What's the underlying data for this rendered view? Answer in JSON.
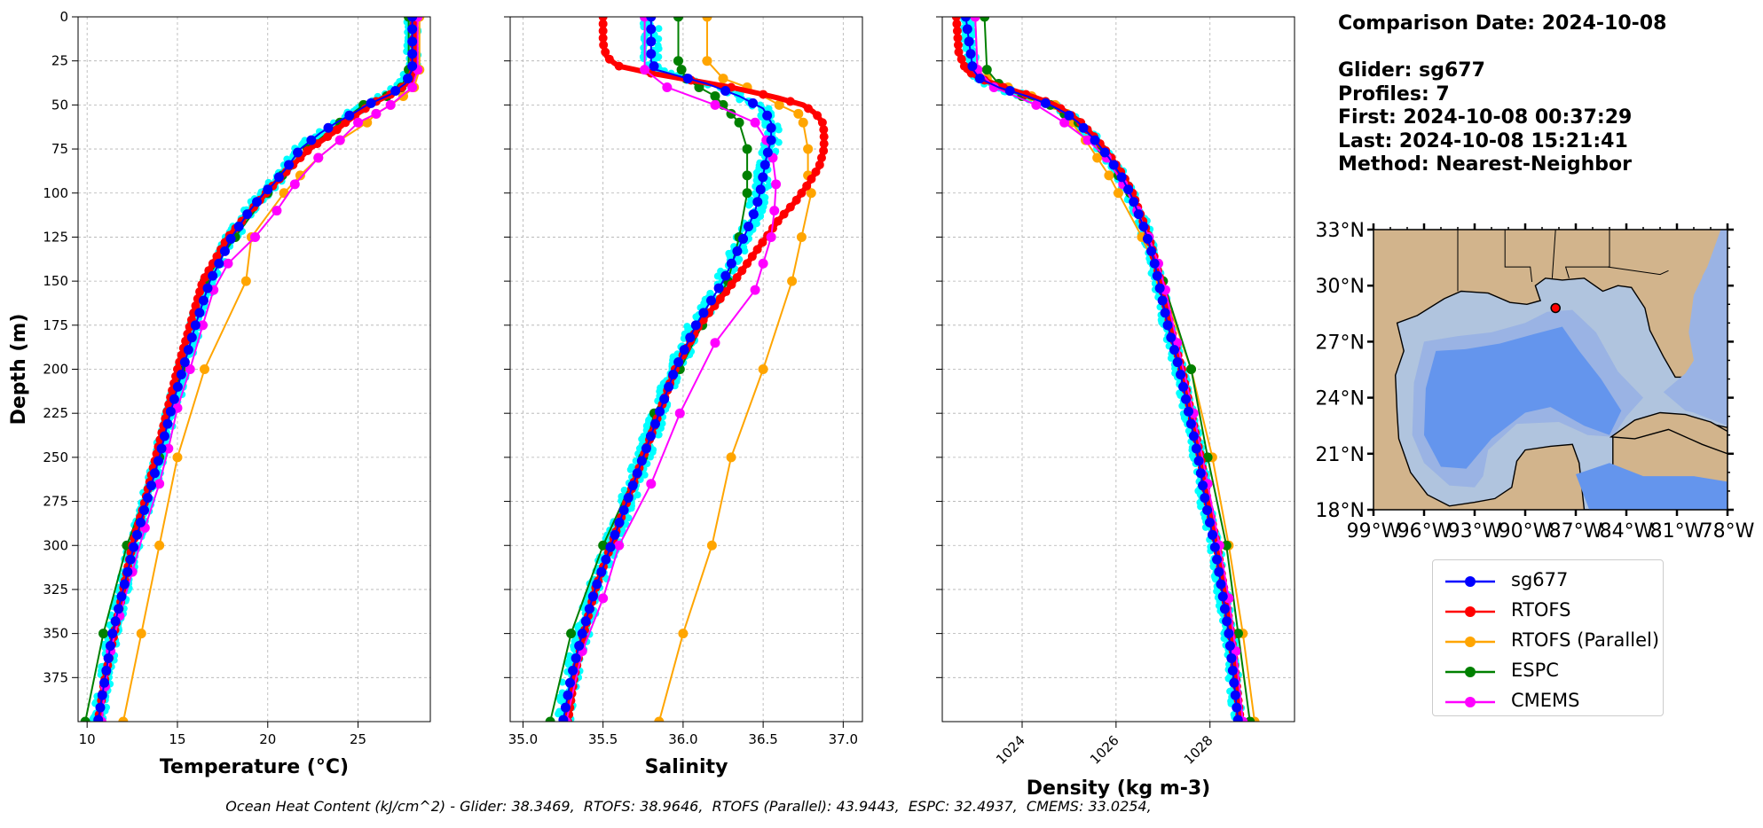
{
  "info": {
    "comparison_date": "Comparison Date: 2024-10-08",
    "glider": "Glider: sg677",
    "profiles": "Profiles: 7",
    "first": "First: 2024-10-08 00:37:29",
    "last": "Last: 2024-10-08 15:21:41",
    "method": "Method: Nearest-Neighbor"
  },
  "footer": "Ocean Heat Content (kJ/cm^2) - Glider: 38.3469,  RTOFS: 38.9646,  RTOFS (Parallel): 43.9443,  ESPC: 32.4937,  CMEMS: 33.0254,",
  "colors": {
    "sg677": "#0000ff",
    "RTOFS": "#ff0000",
    "RTOFS (Parallel)": "#ffa500",
    "ESPC": "#008000",
    "CMEMS": "#ff00ff",
    "glider_raw": "#00ffff",
    "grid": "#b0b0b0"
  },
  "legend": [
    {
      "label": "sg677",
      "color": "#0000ff"
    },
    {
      "label": "RTOFS",
      "color": "#ff0000"
    },
    {
      "label": "RTOFS (Parallel)",
      "color": "#ffa500"
    },
    {
      "label": "ESPC",
      "color": "#008000"
    },
    {
      "label": "CMEMS",
      "color": "#ff00ff"
    }
  ],
  "map": {
    "lat_ticks": [
      "33°N",
      "30°N",
      "27°N",
      "24°N",
      "21°N",
      "18°N"
    ],
    "lon_ticks": [
      "99°W",
      "96°W",
      "93°W",
      "90°W",
      "87°W",
      "84°W",
      "81°W",
      "78°W"
    ],
    "extent": {
      "lon": [
        -99,
        -78
      ],
      "lat": [
        18,
        33
      ]
    },
    "glider_position": {
      "lon": -88.2,
      "lat": 28.8
    },
    "land_color": "#d2b48c",
    "shelf_color": "#b0c4de",
    "mid_color": "#9ab3e4",
    "deep_color": "#6495ed"
  },
  "chart_data": [
    {
      "type": "line",
      "xlabel": "Temperature (°C)",
      "ylabel": "Depth (m)",
      "xlim": [
        9.5,
        29
      ],
      "ylim": [
        400,
        0
      ],
      "xticks": [
        10,
        15,
        20,
        25
      ],
      "yticks": [
        0,
        25,
        50,
        75,
        100,
        125,
        150,
        175,
        200,
        225,
        250,
        275,
        300,
        325,
        350,
        375
      ],
      "grid": true,
      "series": [
        {
          "name": "sg677",
          "depth": [
            0,
            30,
            38,
            44,
            50,
            55,
            60,
            66,
            75,
            85,
            95,
            100,
            110,
            125,
            140,
            150,
            175,
            200,
            225,
            250,
            275,
            300,
            325,
            350,
            375,
            400
          ],
          "values": [
            28.0,
            28.0,
            27.6,
            26.8,
            25.5,
            24.7,
            23.8,
            22.9,
            21.8,
            21.1,
            20.3,
            19.8,
            19.0,
            18.0,
            17.3,
            16.8,
            16.0,
            15.3,
            14.6,
            14.0,
            13.3,
            12.6,
            12.0,
            11.4,
            11.0,
            10.6
          ]
        },
        {
          "name": "RTOFS",
          "depth": [
            0,
            30,
            36,
            42,
            48,
            54,
            60,
            66,
            75,
            85,
            100,
            125,
            150,
            175,
            200,
            225,
            250,
            275,
            300,
            325,
            350,
            375,
            400
          ],
          "values": [
            28.1,
            28.1,
            27.9,
            27.2,
            26.0,
            25.1,
            24.3,
            23.6,
            22.3,
            21.3,
            19.9,
            17.8,
            16.4,
            15.7,
            15.0,
            14.4,
            13.8,
            13.2,
            12.5,
            12.0,
            11.5,
            11.0,
            10.6
          ]
        },
        {
          "name": "RTOFS (Parallel)",
          "depth": [
            0,
            30,
            40,
            45,
            50,
            55,
            60,
            70,
            80,
            90,
            100,
            125,
            150,
            200,
            250,
            300,
            350,
            400
          ],
          "values": [
            28.4,
            28.4,
            28.1,
            27.5,
            26.8,
            26.0,
            25.5,
            24.0,
            22.8,
            21.8,
            20.9,
            19.1,
            18.8,
            16.5,
            15.0,
            14.0,
            13.0,
            12.0
          ]
        },
        {
          "name": "ESPC",
          "depth": [
            0,
            30,
            40,
            45,
            50,
            60,
            75,
            90,
            100,
            125,
            150,
            175,
            200,
            250,
            300,
            350,
            400
          ],
          "values": [
            27.8,
            27.8,
            27.4,
            26.6,
            25.3,
            24.0,
            22.2,
            20.8,
            20.0,
            18.2,
            16.5,
            15.8,
            15.2,
            14.0,
            12.2,
            10.9,
            9.9
          ]
        },
        {
          "name": "CMEMS",
          "depth": [
            0,
            30,
            40,
            50,
            55,
            60,
            70,
            80,
            95,
            110,
            125,
            140,
            155,
            175,
            200,
            222,
            245,
            265,
            290,
            315,
            340,
            360,
            380,
            400
          ],
          "values": [
            28.3,
            28.3,
            28.0,
            26.8,
            26.0,
            25.0,
            24.0,
            22.8,
            21.5,
            20.5,
            19.3,
            17.8,
            17.0,
            16.4,
            15.7,
            15.0,
            14.5,
            14.0,
            13.2,
            12.5,
            11.8,
            11.3,
            11.0,
            10.8
          ]
        }
      ]
    },
    {
      "type": "line",
      "xlabel": "Salinity",
      "xlim": [
        34.92,
        37.12
      ],
      "ylim": [
        400,
        0
      ],
      "xticks": [
        35.0,
        35.5,
        36.0,
        36.5,
        37.0
      ],
      "grid": true,
      "series": [
        {
          "name": "sg677",
          "depth": [
            0,
            15,
            25,
            30,
            33,
            38,
            45,
            52,
            60,
            70,
            80,
            90,
            100,
            110,
            125,
            150,
            175,
            200,
            225,
            250,
            275,
            300,
            325,
            350,
            375,
            400
          ],
          "values": [
            35.8,
            35.8,
            35.8,
            35.83,
            35.95,
            36.15,
            36.35,
            36.5,
            36.55,
            36.55,
            36.52,
            36.5,
            36.48,
            36.45,
            36.38,
            36.25,
            36.08,
            35.95,
            35.85,
            35.75,
            35.65,
            35.55,
            35.45,
            35.37,
            35.3,
            35.25
          ]
        },
        {
          "name": "RTOFS",
          "depth": [
            0,
            15,
            22,
            25,
            28,
            32,
            36,
            40,
            45,
            50,
            55,
            60,
            65,
            75,
            85,
            95,
            105,
            115,
            125,
            140,
            150,
            175,
            200,
            225,
            250,
            275,
            300,
            325,
            350,
            375,
            400
          ],
          "values": [
            35.5,
            35.5,
            35.52,
            35.55,
            35.6,
            35.8,
            36.05,
            36.3,
            36.55,
            36.75,
            36.83,
            36.87,
            36.88,
            36.88,
            36.85,
            36.78,
            36.7,
            36.6,
            36.52,
            36.4,
            36.32,
            36.1,
            35.95,
            35.85,
            35.75,
            35.65,
            35.55,
            35.45,
            35.38,
            35.32,
            35.28
          ]
        },
        {
          "name": "RTOFS (Parallel)",
          "depth": [
            0,
            25,
            35,
            40,
            50,
            55,
            60,
            75,
            90,
            100,
            125,
            150,
            200,
            250,
            300,
            350,
            400
          ],
          "values": [
            36.15,
            36.15,
            36.25,
            36.4,
            36.6,
            36.72,
            36.75,
            36.78,
            36.78,
            36.8,
            36.74,
            36.68,
            36.5,
            36.3,
            36.18,
            36.0,
            35.85
          ]
        },
        {
          "name": "ESPC",
          "depth": [
            0,
            25,
            30,
            35,
            40,
            45,
            50,
            55,
            60,
            75,
            90,
            100,
            125,
            150,
            175,
            200,
            225,
            250,
            300,
            350,
            400
          ],
          "values": [
            35.97,
            35.97,
            35.99,
            36.02,
            36.1,
            36.2,
            36.25,
            36.3,
            36.35,
            36.4,
            36.4,
            36.4,
            36.35,
            36.28,
            36.12,
            35.98,
            35.82,
            35.75,
            35.5,
            35.3,
            35.17
          ]
        },
        {
          "name": "CMEMS",
          "depth": [
            0,
            30,
            40,
            50,
            60,
            70,
            80,
            95,
            110,
            125,
            140,
            155,
            185,
            225,
            265,
            300,
            330,
            360,
            400
          ],
          "values": [
            35.76,
            35.76,
            35.9,
            36.2,
            36.45,
            36.52,
            36.56,
            36.58,
            36.57,
            36.55,
            36.5,
            36.45,
            36.2,
            35.98,
            35.8,
            35.6,
            35.5,
            35.37,
            35.27
          ]
        }
      ]
    },
    {
      "type": "line",
      "xlabel": "Density (kg m-3)",
      "xlim": [
        1022.3,
        1029.8
      ],
      "ylim": [
        400,
        0
      ],
      "xticks": [
        1024,
        1026,
        1028
      ],
      "grid": true,
      "series": [
        {
          "name": "sg677",
          "depth": [
            0,
            10,
            20,
            30,
            35,
            40,
            45,
            50,
            55,
            60,
            70,
            80,
            90,
            100,
            110,
            120,
            130,
            140,
            150,
            175,
            200,
            225,
            250,
            275,
            300,
            325,
            350,
            375,
            400
          ],
          "values": [
            1022.8,
            1022.85,
            1022.9,
            1022.95,
            1023.1,
            1023.5,
            1024.1,
            1024.6,
            1024.95,
            1025.2,
            1025.55,
            1025.85,
            1026.1,
            1026.3,
            1026.45,
            1026.6,
            1026.72,
            1026.82,
            1026.9,
            1027.1,
            1027.35,
            1027.55,
            1027.75,
            1027.9,
            1028.1,
            1028.25,
            1028.4,
            1028.5,
            1028.6
          ]
        },
        {
          "name": "RTOFS",
          "depth": [
            0,
            20,
            30,
            35,
            40,
            45,
            50,
            55,
            60,
            70,
            80,
            90,
            100,
            125,
            150,
            175,
            200,
            225,
            250,
            275,
            300,
            325,
            350,
            375,
            400
          ],
          "values": [
            1022.6,
            1022.65,
            1022.8,
            1023.1,
            1023.6,
            1024.2,
            1024.7,
            1025.0,
            1025.25,
            1025.6,
            1025.9,
            1026.15,
            1026.35,
            1026.7,
            1026.95,
            1027.15,
            1027.4,
            1027.6,
            1027.8,
            1027.95,
            1028.15,
            1028.3,
            1028.45,
            1028.55,
            1028.65
          ]
        },
        {
          "name": "RTOFS (Parallel)",
          "depth": [
            0,
            30,
            35,
            40,
            45,
            50,
            55,
            60,
            70,
            80,
            90,
            100,
            125,
            150,
            200,
            250,
            300,
            350,
            400
          ],
          "values": [
            1023.0,
            1023.05,
            1023.25,
            1023.7,
            1024.2,
            1024.7,
            1024.95,
            1025.05,
            1025.35,
            1025.6,
            1025.85,
            1026.05,
            1026.55,
            1026.95,
            1027.6,
            1028.05,
            1028.4,
            1028.7,
            1028.95
          ]
        },
        {
          "name": "ESPC",
          "depth": [
            0,
            30,
            38,
            45,
            50,
            55,
            60,
            75,
            90,
            100,
            125,
            150,
            200,
            250,
            300,
            350,
            400
          ],
          "values": [
            1023.2,
            1023.25,
            1023.5,
            1024.0,
            1024.6,
            1024.9,
            1025.2,
            1025.7,
            1026.05,
            1026.3,
            1026.7,
            1027.0,
            1027.6,
            1027.95,
            1028.35,
            1028.6,
            1028.85
          ]
        },
        {
          "name": "CMEMS",
          "depth": [
            0,
            30,
            40,
            50,
            60,
            70,
            80,
            95,
            110,
            125,
            140,
            155,
            185,
            225,
            265,
            300,
            330,
            360,
            400
          ],
          "values": [
            1023.0,
            1023.05,
            1023.4,
            1024.3,
            1024.9,
            1025.4,
            1025.8,
            1026.15,
            1026.45,
            1026.7,
            1026.9,
            1027.05,
            1027.3,
            1027.65,
            1027.95,
            1028.2,
            1028.4,
            1028.55,
            1028.7
          ]
        }
      ]
    }
  ]
}
